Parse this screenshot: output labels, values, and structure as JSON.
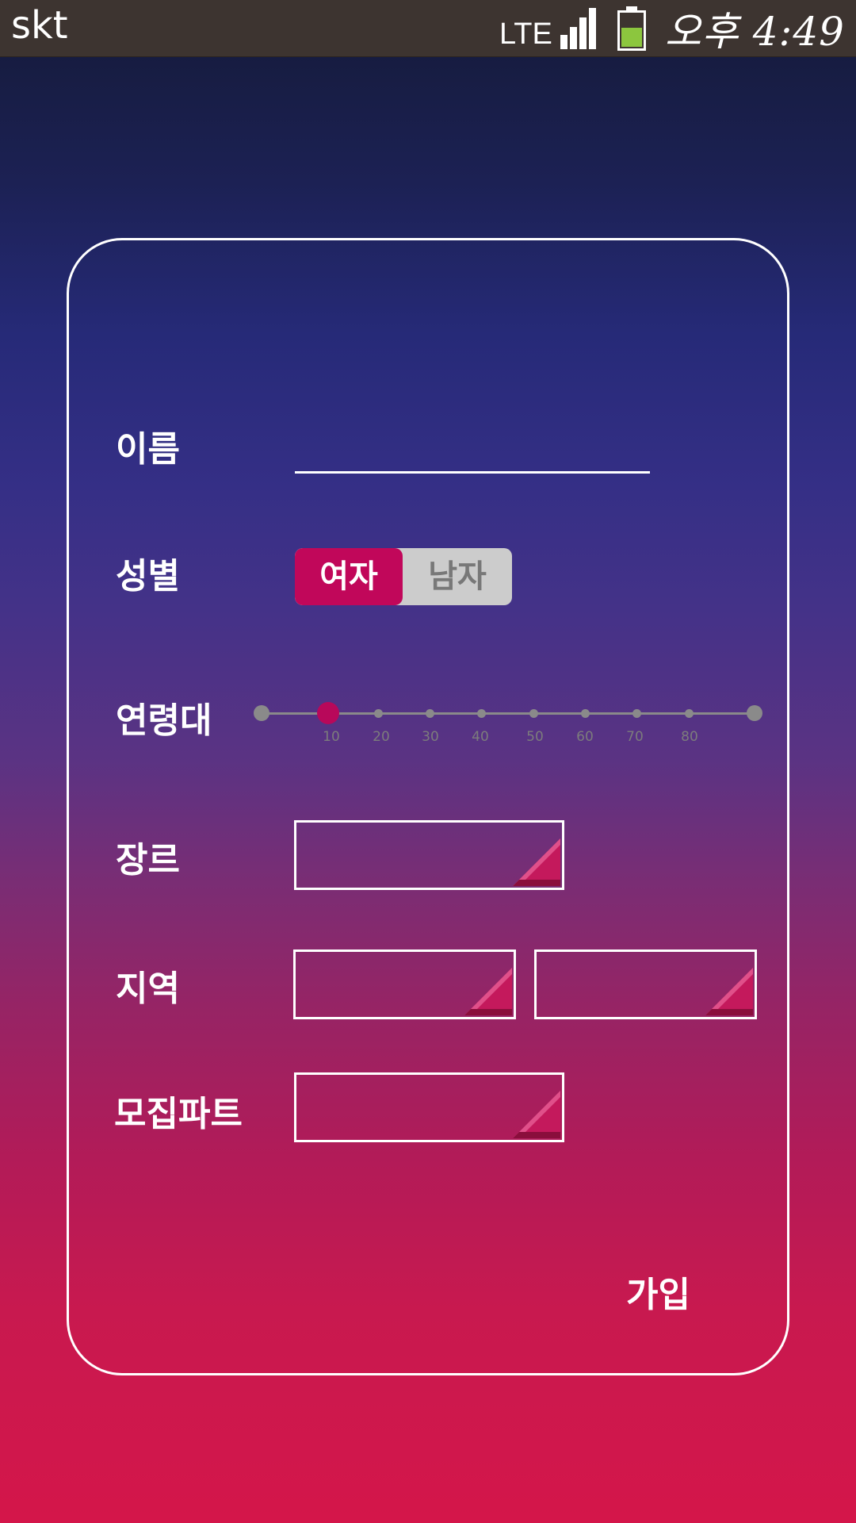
{
  "status_bar": {
    "carrier": "skt",
    "network": "LTE",
    "signal_icon": "signal-bars-icon",
    "battery_icon": "battery-icon",
    "battery_color": "#8cc63e",
    "time": "오후 4:49"
  },
  "form": {
    "name": {
      "label": "이름",
      "value": ""
    },
    "gender": {
      "label": "성별",
      "options": [
        "여자",
        "남자"
      ],
      "selected": "여자",
      "selected_color": "#c1075a"
    },
    "age": {
      "label": "연령대",
      "ticks": [
        "10",
        "20",
        "30",
        "40",
        "50",
        "60",
        "70",
        "80"
      ],
      "selected": "10"
    },
    "genre": {
      "label": "장르",
      "value": ""
    },
    "region": {
      "label": "지역",
      "value_1": "",
      "value_2": ""
    },
    "recruit_part": {
      "label": "모집파트",
      "value": ""
    },
    "submit_label": "가입"
  },
  "colors": {
    "accent": "#c1075a",
    "gradient_top": "#141a38",
    "gradient_bottom": "#d4164a"
  }
}
